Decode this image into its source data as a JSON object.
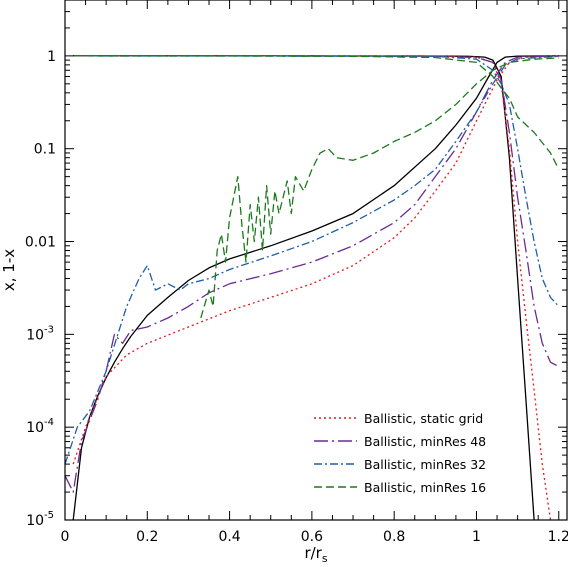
{
  "chart_data": {
    "type": "line",
    "xlabel": "r/r_s",
    "ylabel": "x, 1-x",
    "xlim": [
      0,
      1.22
    ],
    "ylim": [
      1e-05,
      4
    ],
    "yscale": "log",
    "legend_position": "bottom-right",
    "x_ticks": [
      {
        "v": 0,
        "label": "0"
      },
      {
        "v": 0.2,
        "label": "0.2"
      },
      {
        "v": 0.4,
        "label": "0.4"
      },
      {
        "v": 0.6,
        "label": "0.6"
      },
      {
        "v": 0.8,
        "label": "0.8"
      },
      {
        "v": 1.0,
        "label": "1"
      },
      {
        "v": 1.2,
        "label": "1.2"
      }
    ],
    "y_ticks": [
      {
        "v": 1,
        "label": "1"
      },
      {
        "v": 0.1,
        "label": "0.1"
      },
      {
        "v": 0.01,
        "label": "0.01"
      },
      {
        "v": 0.001,
        "label": "10",
        "exp": "-3"
      },
      {
        "v": 0.0001,
        "label": "10",
        "exp": "-4"
      },
      {
        "v": 1e-05,
        "label": "10",
        "exp": "-5"
      }
    ],
    "series": [
      {
        "name": "",
        "color": "#000000",
        "dash": "",
        "x_frac": [
          [
            0.02,
            1.0
          ],
          [
            0.5,
            1.0
          ],
          [
            0.9,
            0.998
          ],
          [
            0.98,
            0.99
          ],
          [
            1.02,
            0.97
          ],
          [
            1.04,
            0.9
          ],
          [
            1.06,
            0.6
          ],
          [
            1.08,
            0.08
          ],
          [
            1.1,
            0.004
          ],
          [
            1.12,
            0.0002
          ],
          [
            1.14,
            1e-05
          ]
        ],
        "one_minus_x": [
          [
            0.02,
            1e-05
          ],
          [
            0.04,
            6e-05
          ],
          [
            0.06,
            0.00013
          ],
          [
            0.08,
            0.00022
          ],
          [
            0.1,
            0.00034
          ],
          [
            0.12,
            0.0005
          ],
          [
            0.14,
            0.0007
          ],
          [
            0.16,
            0.00095
          ],
          [
            0.2,
            0.0016
          ],
          [
            0.25,
            0.0025
          ],
          [
            0.3,
            0.0038
          ],
          [
            0.35,
            0.0052
          ],
          [
            0.4,
            0.0065
          ],
          [
            0.5,
            0.009
          ],
          [
            0.6,
            0.013
          ],
          [
            0.7,
            0.02
          ],
          [
            0.8,
            0.04
          ],
          [
            0.9,
            0.1
          ],
          [
            0.95,
            0.18
          ],
          [
            1.0,
            0.35
          ],
          [
            1.03,
            0.6
          ],
          [
            1.05,
            0.85
          ],
          [
            1.07,
            0.97
          ],
          [
            1.1,
            0.995
          ],
          [
            1.2,
            1.0
          ]
        ]
      },
      {
        "name": "Ballistic, static grid",
        "color": "#e41a1c",
        "dash": "2,3",
        "x_frac": [
          [
            0.02,
            1.0
          ],
          [
            0.5,
            1.0
          ],
          [
            0.9,
            0.995
          ],
          [
            1.0,
            0.97
          ],
          [
            1.04,
            0.85
          ],
          [
            1.06,
            0.5
          ],
          [
            1.08,
            0.1
          ],
          [
            1.1,
            0.01
          ],
          [
            1.12,
            0.0015
          ],
          [
            1.14,
            0.00025
          ],
          [
            1.16,
            4e-05
          ],
          [
            1.18,
            1e-05
          ]
        ],
        "one_minus_x": [
          [
            0.02,
            4e-05
          ],
          [
            0.05,
            0.0001
          ],
          [
            0.1,
            0.00035
          ],
          [
            0.15,
            0.0006
          ],
          [
            0.2,
            0.0008
          ],
          [
            0.3,
            0.0012
          ],
          [
            0.4,
            0.0018
          ],
          [
            0.5,
            0.0025
          ],
          [
            0.6,
            0.0035
          ],
          [
            0.7,
            0.0055
          ],
          [
            0.8,
            0.011
          ],
          [
            0.85,
            0.018
          ],
          [
            0.9,
            0.035
          ],
          [
            0.95,
            0.07
          ],
          [
            1.0,
            0.2
          ],
          [
            1.05,
            0.55
          ],
          [
            1.08,
            0.85
          ],
          [
            1.12,
            0.97
          ],
          [
            1.2,
            0.99
          ]
        ]
      },
      {
        "name": "Ballistic, minRes 48",
        "color": "#6a2c91",
        "dash": "14,4,2,4",
        "x_frac": [
          [
            0.02,
            1.0
          ],
          [
            0.5,
            1.0
          ],
          [
            0.9,
            0.995
          ],
          [
            1.0,
            0.96
          ],
          [
            1.04,
            0.85
          ],
          [
            1.06,
            0.55
          ],
          [
            1.08,
            0.15
          ],
          [
            1.1,
            0.03
          ],
          [
            1.12,
            0.008
          ],
          [
            1.14,
            0.002
          ],
          [
            1.16,
            0.0008
          ],
          [
            1.18,
            0.0005
          ],
          [
            1.2,
            0.00045
          ]
        ],
        "one_minus_x": [
          [
            0.0,
            3e-05
          ],
          [
            0.02,
            2e-05
          ],
          [
            0.04,
            7e-05
          ],
          [
            0.08,
            0.0002
          ],
          [
            0.1,
            0.0004
          ],
          [
            0.12,
            0.001
          ],
          [
            0.14,
            0.0008
          ],
          [
            0.16,
            0.0011
          ],
          [
            0.2,
            0.0012
          ],
          [
            0.25,
            0.0015
          ],
          [
            0.3,
            0.002
          ],
          [
            0.35,
            0.0028
          ],
          [
            0.4,
            0.0035
          ],
          [
            0.5,
            0.0045
          ],
          [
            0.6,
            0.006
          ],
          [
            0.7,
            0.009
          ],
          [
            0.8,
            0.016
          ],
          [
            0.85,
            0.025
          ],
          [
            0.9,
            0.05
          ],
          [
            0.95,
            0.1
          ],
          [
            1.0,
            0.25
          ],
          [
            1.04,
            0.55
          ],
          [
            1.07,
            0.85
          ],
          [
            1.1,
            0.97
          ],
          [
            1.2,
            0.995
          ]
        ]
      },
      {
        "name": "Ballistic, minRes 32",
        "color": "#1f5fa8",
        "dash": "8,3,2,3",
        "x_frac": [
          [
            0.02,
            1.0
          ],
          [
            0.5,
            0.998
          ],
          [
            0.9,
            0.99
          ],
          [
            1.0,
            0.92
          ],
          [
            1.04,
            0.7
          ],
          [
            1.06,
            0.5
          ],
          [
            1.08,
            0.3
          ],
          [
            1.1,
            0.1
          ],
          [
            1.12,
            0.03
          ],
          [
            1.14,
            0.01
          ],
          [
            1.16,
            0.004
          ],
          [
            1.18,
            0.0025
          ],
          [
            1.2,
            0.002
          ]
        ],
        "one_minus_x": [
          [
            0.0,
            4e-05
          ],
          [
            0.03,
            0.0001
          ],
          [
            0.06,
            0.00015
          ],
          [
            0.1,
            0.0004
          ],
          [
            0.15,
            0.002
          ],
          [
            0.18,
            0.004
          ],
          [
            0.2,
            0.0055
          ],
          [
            0.22,
            0.003
          ],
          [
            0.25,
            0.0035
          ],
          [
            0.28,
            0.003
          ],
          [
            0.3,
            0.0035
          ],
          [
            0.35,
            0.004
          ],
          [
            0.4,
            0.005
          ],
          [
            0.5,
            0.007
          ],
          [
            0.6,
            0.01
          ],
          [
            0.7,
            0.016
          ],
          [
            0.8,
            0.028
          ],
          [
            0.85,
            0.04
          ],
          [
            0.9,
            0.06
          ],
          [
            0.95,
            0.12
          ],
          [
            1.0,
            0.25
          ],
          [
            1.04,
            0.5
          ],
          [
            1.07,
            0.8
          ],
          [
            1.1,
            0.93
          ],
          [
            1.2,
            0.99
          ]
        ]
      },
      {
        "name": "Ballistic, minRes 16",
        "color": "#1a7a1a",
        "dash": "8,4",
        "x_frac": [
          [
            0.02,
            1.0
          ],
          [
            0.4,
            0.998
          ],
          [
            0.7,
            0.99
          ],
          [
            0.9,
            0.96
          ],
          [
            1.0,
            0.85
          ],
          [
            1.04,
            0.6
          ],
          [
            1.06,
            0.45
          ],
          [
            1.08,
            0.35
          ],
          [
            1.1,
            0.22
          ],
          [
            1.14,
            0.15
          ],
          [
            1.18,
            0.09
          ],
          [
            1.2,
            0.06
          ]
        ],
        "one_minus_x": [
          [
            0.33,
            0.0015
          ],
          [
            0.35,
            0.003
          ],
          [
            0.36,
            0.002
          ],
          [
            0.37,
            0.008
          ],
          [
            0.38,
            0.012
          ],
          [
            0.39,
            0.006
          ],
          [
            0.4,
            0.018
          ],
          [
            0.41,
            0.03
          ],
          [
            0.42,
            0.05
          ],
          [
            0.43,
            0.015
          ],
          [
            0.44,
            0.006
          ],
          [
            0.45,
            0.025
          ],
          [
            0.46,
            0.01
          ],
          [
            0.47,
            0.03
          ],
          [
            0.48,
            0.008
          ],
          [
            0.49,
            0.04
          ],
          [
            0.5,
            0.012
          ],
          [
            0.51,
            0.035
          ],
          [
            0.52,
            0.02
          ],
          [
            0.54,
            0.045
          ],
          [
            0.55,
            0.02
          ],
          [
            0.56,
            0.05
          ],
          [
            0.58,
            0.035
          ],
          [
            0.6,
            0.06
          ],
          [
            0.62,
            0.09
          ],
          [
            0.64,
            0.1
          ],
          [
            0.66,
            0.08
          ],
          [
            0.7,
            0.075
          ],
          [
            0.75,
            0.09
          ],
          [
            0.8,
            0.12
          ],
          [
            0.85,
            0.15
          ],
          [
            0.9,
            0.2
          ],
          [
            0.95,
            0.3
          ],
          [
            1.0,
            0.5
          ],
          [
            1.04,
            0.7
          ],
          [
            1.08,
            0.85
          ],
          [
            1.14,
            0.92
          ],
          [
            1.2,
            0.95
          ]
        ]
      }
    ]
  }
}
